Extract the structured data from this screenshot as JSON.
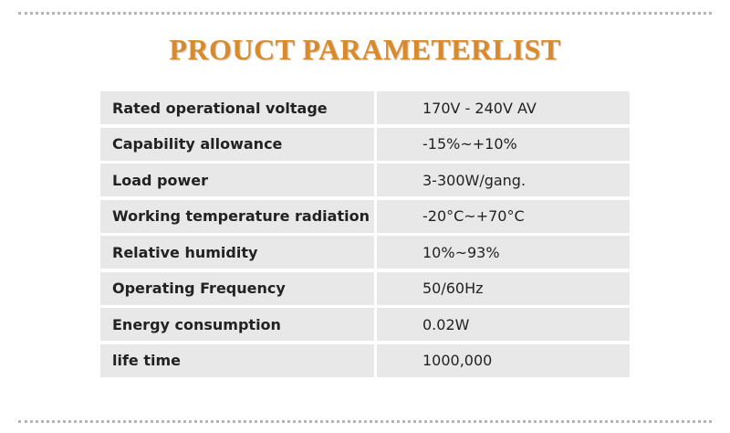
{
  "header": {
    "title": "PROUCT PARAMETERLIST"
  },
  "table": {
    "rows": [
      [
        "Rated operational voltage",
        "170V - 240V AV"
      ],
      [
        "Capability allowance",
        "-15%~+10%"
      ],
      [
        "Load power",
        "3-300W/gang."
      ],
      [
        "Working temperature radiation",
        "-20°C~+70°C"
      ],
      [
        "Relative humidity",
        "10%~93%"
      ],
      [
        "Operating Frequency",
        "50/60Hz"
      ],
      [
        "Energy consumption",
        "0.02W"
      ],
      [
        "life time",
        "1000,000"
      ]
    ]
  }
}
